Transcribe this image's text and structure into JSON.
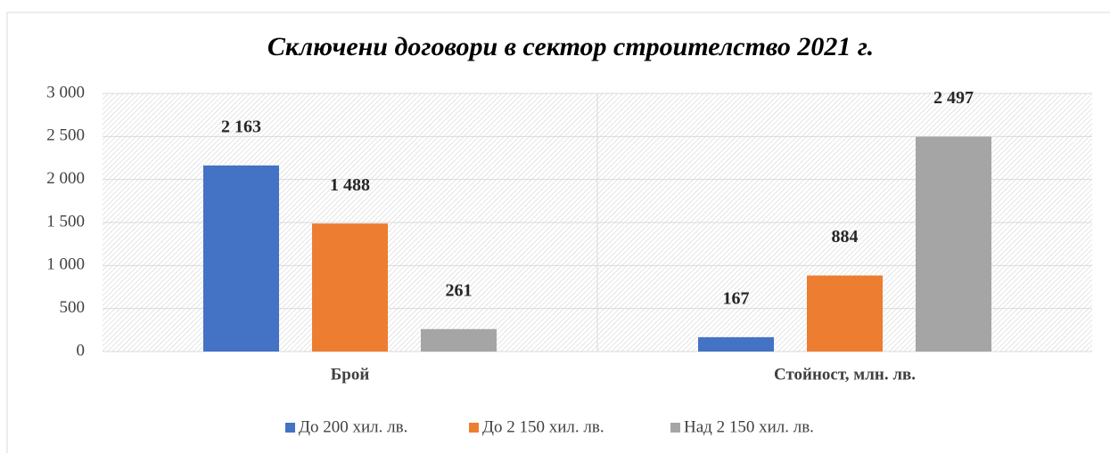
{
  "chart_data": {
    "type": "bar",
    "title": "Сключени договори в сектор строителство 2021 г.",
    "categories": [
      "Брой",
      "Стойност, млн. лв."
    ],
    "series": [
      {
        "name": "До 200 хил. лв.",
        "color": "#4472c4",
        "values": [
          2163,
          167
        ],
        "value_labels": [
          "2 163",
          "167"
        ]
      },
      {
        "name": "До 2 150 хил. лв.",
        "color": "#ed7d31",
        "values": [
          1488,
          884
        ],
        "value_labels": [
          "1 488",
          "884"
        ]
      },
      {
        "name": "Над 2 150 хил. лв.",
        "color": "#a5a5a5",
        "values": [
          261,
          2497
        ],
        "value_labels": [
          "261",
          "2 497"
        ]
      }
    ],
    "ylim": [
      0,
      3000
    ],
    "yticks": [
      0,
      500,
      {
        "value": 1000,
        "label": "1 000"
      },
      {
        "value": 1500,
        "label": "1 500"
      },
      {
        "value": 2000,
        "label": "2 000"
      },
      {
        "value": 2500,
        "label": "2 500"
      },
      {
        "value": 3000,
        "label": "3 000"
      }
    ],
    "grid": true,
    "legend": "bottom"
  }
}
